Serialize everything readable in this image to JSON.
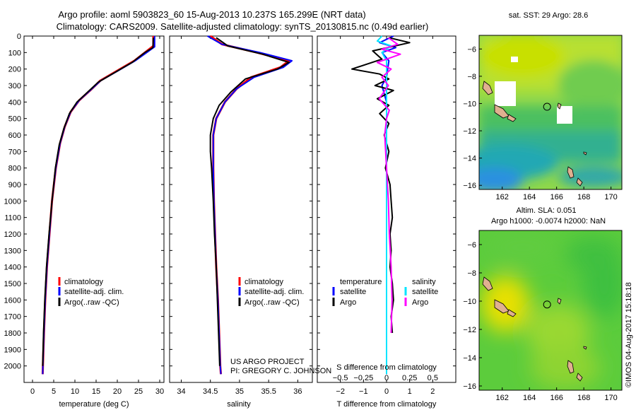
{
  "header": {
    "line1": "Argo profile: aoml 5903823_60 15-Aug-2013 10.237S 165.299E (NRT data)",
    "line2": "Climatology: CARS2009. Satellite-adjusted climatology: synTS_20130815.nc (0.49d earlier)"
  },
  "credit": {
    "project": "US ARGO PROJECT",
    "pi": "PI: GREGORY C. JOHNSON",
    "imos": "©IMOS 04-Aug-2017 15:18:18"
  },
  "colors": {
    "climatology": "#ff0000",
    "satellite": "#0000ff",
    "argo": "#000000",
    "sal_satellite": "#00e5ff",
    "sal_argo": "#ff00ff",
    "ocean_warm": "#c8e000",
    "ocean_mid": "#3cc83c",
    "ocean_cool": "#1aa0a0",
    "land": "#e0b090"
  },
  "chart_data": [
    {
      "type": "line",
      "id": "temperature",
      "xlabel": "temperature (deg C)",
      "xlim": [
        -2,
        31
      ],
      "ylim": [
        2100,
        0
      ],
      "xticks": [
        0,
        5,
        10,
        15,
        20,
        25,
        30
      ],
      "yticks": [
        0,
        100,
        200,
        300,
        400,
        500,
        600,
        700,
        800,
        900,
        1000,
        1100,
        1200,
        1300,
        1400,
        1500,
        1600,
        1700,
        1800,
        1900,
        2000
      ],
      "legend": [
        "climatology",
        "satellite-adj. clim.",
        "Argo(..raw -QC)"
      ],
      "series": [
        {
          "name": "climatology",
          "color": "#ff0000",
          "points": [
            [
              28.5,
              0
            ],
            [
              28.5,
              60
            ],
            [
              27,
              90
            ],
            [
              24,
              150
            ],
            [
              20,
              210
            ],
            [
              16,
              270
            ],
            [
              14,
              320
            ],
            [
              11,
              390
            ],
            [
              9,
              460
            ],
            [
              7.6,
              550
            ],
            [
              6.5,
              650
            ],
            [
              5.5,
              800
            ],
            [
              4.6,
              1000
            ],
            [
              4,
              1200
            ],
            [
              3.4,
              1400
            ],
            [
              3,
              1600
            ],
            [
              2.7,
              1800
            ],
            [
              2.45,
              2000
            ],
            [
              2.4,
              2050
            ]
          ]
        },
        {
          "name": "satellite-adj. clim.",
          "color": "#0000ff",
          "points": [
            [
              28.8,
              0
            ],
            [
              28.8,
              65
            ],
            [
              27.2,
              95
            ],
            [
              24.2,
              150
            ],
            [
              20.2,
              210
            ],
            [
              16.1,
              270
            ],
            [
              14,
              320
            ],
            [
              11,
              390
            ],
            [
              9,
              460
            ],
            [
              7.6,
              550
            ],
            [
              6.5,
              650
            ],
            [
              5.5,
              800
            ],
            [
              4.6,
              1000
            ],
            [
              4,
              1200
            ],
            [
              3.4,
              1400
            ],
            [
              3,
              1600
            ],
            [
              2.7,
              1800
            ],
            [
              2.45,
              2000
            ],
            [
              2.4,
              2050
            ]
          ]
        },
        {
          "name": "Argo(..raw -QC)",
          "color": "#000000",
          "points": [
            [
              28.5,
              10
            ],
            [
              28.4,
              70
            ],
            [
              26.5,
              100
            ],
            [
              23.5,
              160
            ],
            [
              19.5,
              220
            ],
            [
              15.5,
              280
            ],
            [
              13,
              340
            ],
            [
              10.5,
              400
            ],
            [
              8.7,
              470
            ],
            [
              7.4,
              560
            ],
            [
              6.3,
              660
            ],
            [
              5.4,
              800
            ],
            [
              4.6,
              1000
            ],
            [
              3.9,
              1200
            ],
            [
              3.3,
              1400
            ],
            [
              2.9,
              1600
            ],
            [
              2.6,
              1800
            ],
            [
              2.4,
              2000
            ]
          ]
        }
      ]
    },
    {
      "type": "line",
      "id": "salinity",
      "xlabel": "salinity",
      "xlim": [
        33.8,
        36.25
      ],
      "ylim": [
        2100,
        0
      ],
      "xticks": [
        34,
        34.5,
        35,
        35.5,
        36
      ],
      "legend": [
        "climatology",
        "satellite-adj. clim.",
        "Argo(..raw -QC)"
      ],
      "series": [
        {
          "name": "climatology",
          "color": "#ff0000",
          "points": [
            [
              34.5,
              0
            ],
            [
              34.7,
              50
            ],
            [
              35.3,
              100
            ],
            [
              35.85,
              150
            ],
            [
              35.7,
              190
            ],
            [
              35.2,
              250
            ],
            [
              34.95,
              320
            ],
            [
              34.75,
              400
            ],
            [
              34.6,
              500
            ],
            [
              34.55,
              600
            ],
            [
              34.55,
              700
            ],
            [
              34.55,
              800
            ],
            [
              34.56,
              1000
            ],
            [
              34.58,
              1200
            ],
            [
              34.6,
              1400
            ],
            [
              34.63,
              1600
            ],
            [
              34.65,
              1800
            ],
            [
              34.67,
              2000
            ],
            [
              34.68,
              2050
            ]
          ]
        },
        {
          "name": "satellite-adj. clim.",
          "color": "#0000ff",
          "points": [
            [
              34.45,
              0
            ],
            [
              34.7,
              50
            ],
            [
              35.35,
              100
            ],
            [
              35.9,
              150
            ],
            [
              35.75,
              190
            ],
            [
              35.25,
              250
            ],
            [
              34.95,
              320
            ],
            [
              34.75,
              400
            ],
            [
              34.6,
              500
            ],
            [
              34.55,
              600
            ],
            [
              34.55,
              700
            ],
            [
              34.55,
              800
            ],
            [
              34.56,
              1000
            ],
            [
              34.58,
              1200
            ],
            [
              34.6,
              1400
            ],
            [
              34.63,
              1600
            ],
            [
              34.65,
              1800
            ],
            [
              34.67,
              2000
            ],
            [
              34.68,
              2050
            ]
          ]
        },
        {
          "name": "Argo(..raw -QC)",
          "color": "#000000",
          "points": [
            [
              34.6,
              10
            ],
            [
              34.8,
              60
            ],
            [
              35.4,
              110
            ],
            [
              35.85,
              160
            ],
            [
              35.65,
              200
            ],
            [
              35.1,
              260
            ],
            [
              34.85,
              340
            ],
            [
              34.65,
              420
            ],
            [
              34.55,
              500
            ],
            [
              34.5,
              600
            ],
            [
              34.5,
              700
            ],
            [
              34.52,
              800
            ],
            [
              34.55,
              1000
            ],
            [
              34.57,
              1200
            ],
            [
              34.6,
              1400
            ],
            [
              34.62,
              1600
            ],
            [
              34.64,
              1800
            ],
            [
              34.66,
              2000
            ]
          ]
        }
      ]
    },
    {
      "type": "line",
      "id": "difference",
      "xlabel": "T difference from climatology",
      "xlabel2": "S difference from climatology",
      "xlim": [
        -3,
        3
      ],
      "xlim_s": [
        -0.75,
        0.75
      ],
      "ylim": [
        2100,
        0
      ],
      "xticks": [
        -2,
        -1,
        0,
        1,
        2
      ],
      "xtick_labels": [
        "−2",
        "−1",
        "0",
        "1",
        "2"
      ],
      "xticks_s": [
        -0.5,
        -0.25,
        0,
        0.25,
        0.5
      ],
      "xtick_labels_s": [
        "−0.5",
        "−0.25",
        "0",
        "0.25",
        "0.5"
      ],
      "legend_temperature": {
        "title": "temperature",
        "items": [
          "satellite",
          "Argo"
        ]
      },
      "legend_salinity": {
        "title": "salinity",
        "items": [
          "satellite",
          "Argo"
        ]
      },
      "series": [
        {
          "name": "T satellite",
          "color": "#0000ff",
          "points": [
            [
              0.3,
              0
            ],
            [
              -0.3,
              40
            ],
            [
              0.4,
              70
            ],
            [
              -0.2,
              100
            ],
            [
              0.1,
              150
            ],
            [
              0,
              250
            ],
            [
              -0.2,
              300
            ],
            [
              0,
              400
            ],
            [
              0,
              600
            ],
            [
              0,
              1000
            ],
            [
              0,
              1400
            ],
            [
              0,
              1800
            ],
            [
              0,
              2050
            ]
          ]
        },
        {
          "name": "T Argo",
          "color": "#000000",
          "points": [
            [
              0.1,
              10
            ],
            [
              1,
              40
            ],
            [
              -0.6,
              90
            ],
            [
              -0.2,
              140
            ],
            [
              -1.5,
              200
            ],
            [
              -0.3,
              230
            ],
            [
              0.1,
              260
            ],
            [
              -0.5,
              300
            ],
            [
              0.3,
              330
            ],
            [
              -0.4,
              380
            ],
            [
              0.1,
              420
            ],
            [
              -0.3,
              470
            ],
            [
              0.1,
              530
            ],
            [
              -0.1,
              600
            ],
            [
              0.1,
              700
            ],
            [
              -0.05,
              800
            ],
            [
              0.15,
              900
            ],
            [
              0.2,
              1000
            ],
            [
              0.25,
              1100
            ],
            [
              0.15,
              1200
            ],
            [
              0.2,
              1300
            ],
            [
              0.15,
              1400
            ],
            [
              0.25,
              1500
            ],
            [
              0.3,
              1600
            ],
            [
              0.2,
              1700
            ],
            [
              0.25,
              1800
            ]
          ]
        },
        {
          "name": "S satellite",
          "color": "#00e5ff",
          "points": [
            [
              -0.05,
              0
            ],
            [
              -0.1,
              30
            ],
            [
              0.05,
              60
            ],
            [
              -0.05,
              100
            ],
            [
              0,
              150
            ],
            [
              0,
              300
            ],
            [
              0,
              500
            ],
            [
              0,
              1000
            ],
            [
              0,
              1500
            ],
            [
              0,
              2050
            ]
          ]
        },
        {
          "name": "S Argo",
          "color": "#ff00ff",
          "points": [
            [
              0.02,
              10
            ],
            [
              0.12,
              50
            ],
            [
              -0.05,
              80
            ],
            [
              0.15,
              110
            ],
            [
              -0.1,
              160
            ],
            [
              0.05,
              200
            ],
            [
              -0.05,
              250
            ],
            [
              0.02,
              300
            ],
            [
              -0.08,
              380
            ],
            [
              0.03,
              450
            ],
            [
              0,
              500
            ],
            [
              -0.02,
              600
            ],
            [
              0,
              800
            ],
            [
              0.02,
              1000
            ],
            [
              0.03,
              1200
            ],
            [
              0.05,
              1400
            ],
            [
              0.06,
              1600
            ],
            [
              0.05,
              1800
            ]
          ]
        }
      ]
    },
    {
      "type": "heatmap",
      "id": "sst-map",
      "title": "sat. SST: 29 Argo: 28.6",
      "xlim": [
        160.3,
        170.8
      ],
      "ylim": [
        -16.3,
        -5
      ],
      "xticks": [
        162,
        164,
        166,
        168,
        170
      ],
      "yticks": [
        -6,
        -8,
        -10,
        -12,
        -14,
        -16
      ],
      "ytick_labels": [
        "−6",
        "−8",
        "−10",
        "−12",
        "−14",
        "−16"
      ],
      "marker": [
        165.299,
        -10.237
      ]
    },
    {
      "type": "heatmap",
      "id": "sla-map",
      "title": "Altim. SLA: 0.051",
      "subtitle": "Argo h1000: -0.0074 h2000: NaN",
      "xlim": [
        160.3,
        170.8
      ],
      "ylim": [
        -16.3,
        -5
      ],
      "xticks": [
        162,
        164,
        166,
        168,
        170
      ],
      "yticks": [
        -6,
        -8,
        -10,
        -12,
        -14,
        -16
      ],
      "ytick_labels": [
        "−6",
        "−8",
        "−10",
        "−12",
        "−14",
        "−16"
      ],
      "marker": [
        165.299,
        -10.237
      ]
    }
  ]
}
